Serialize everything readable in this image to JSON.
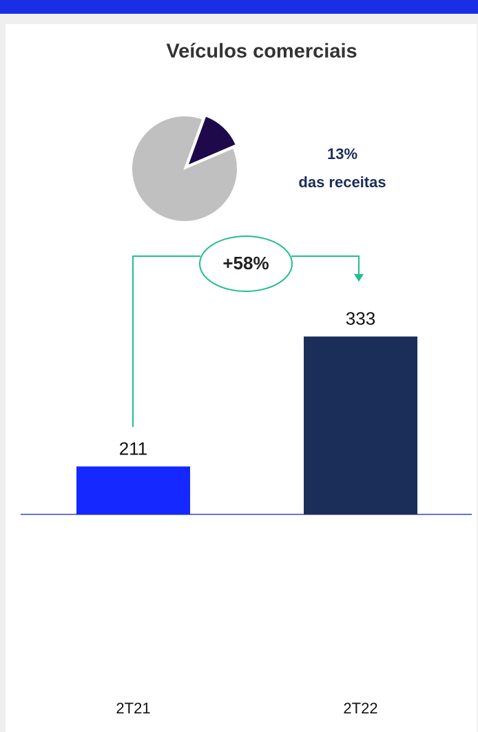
{
  "chart_data": [
    {
      "type": "pie",
      "values": [
        13,
        87
      ],
      "value_labels": [
        "13%",
        null
      ],
      "colors": [
        "#1e0a4b",
        "#c0c0c0"
      ],
      "annotation": "das receitas"
    },
    {
      "type": "bar",
      "title": "Veículos comerciais",
      "categories": [
        "2T21",
        "2T22"
      ],
      "values": [
        211,
        333
      ],
      "colors": [
        "#1428ff",
        "#1b2e5a"
      ],
      "ylim": [
        166,
        400
      ],
      "annotation": "+58%"
    }
  ]
}
